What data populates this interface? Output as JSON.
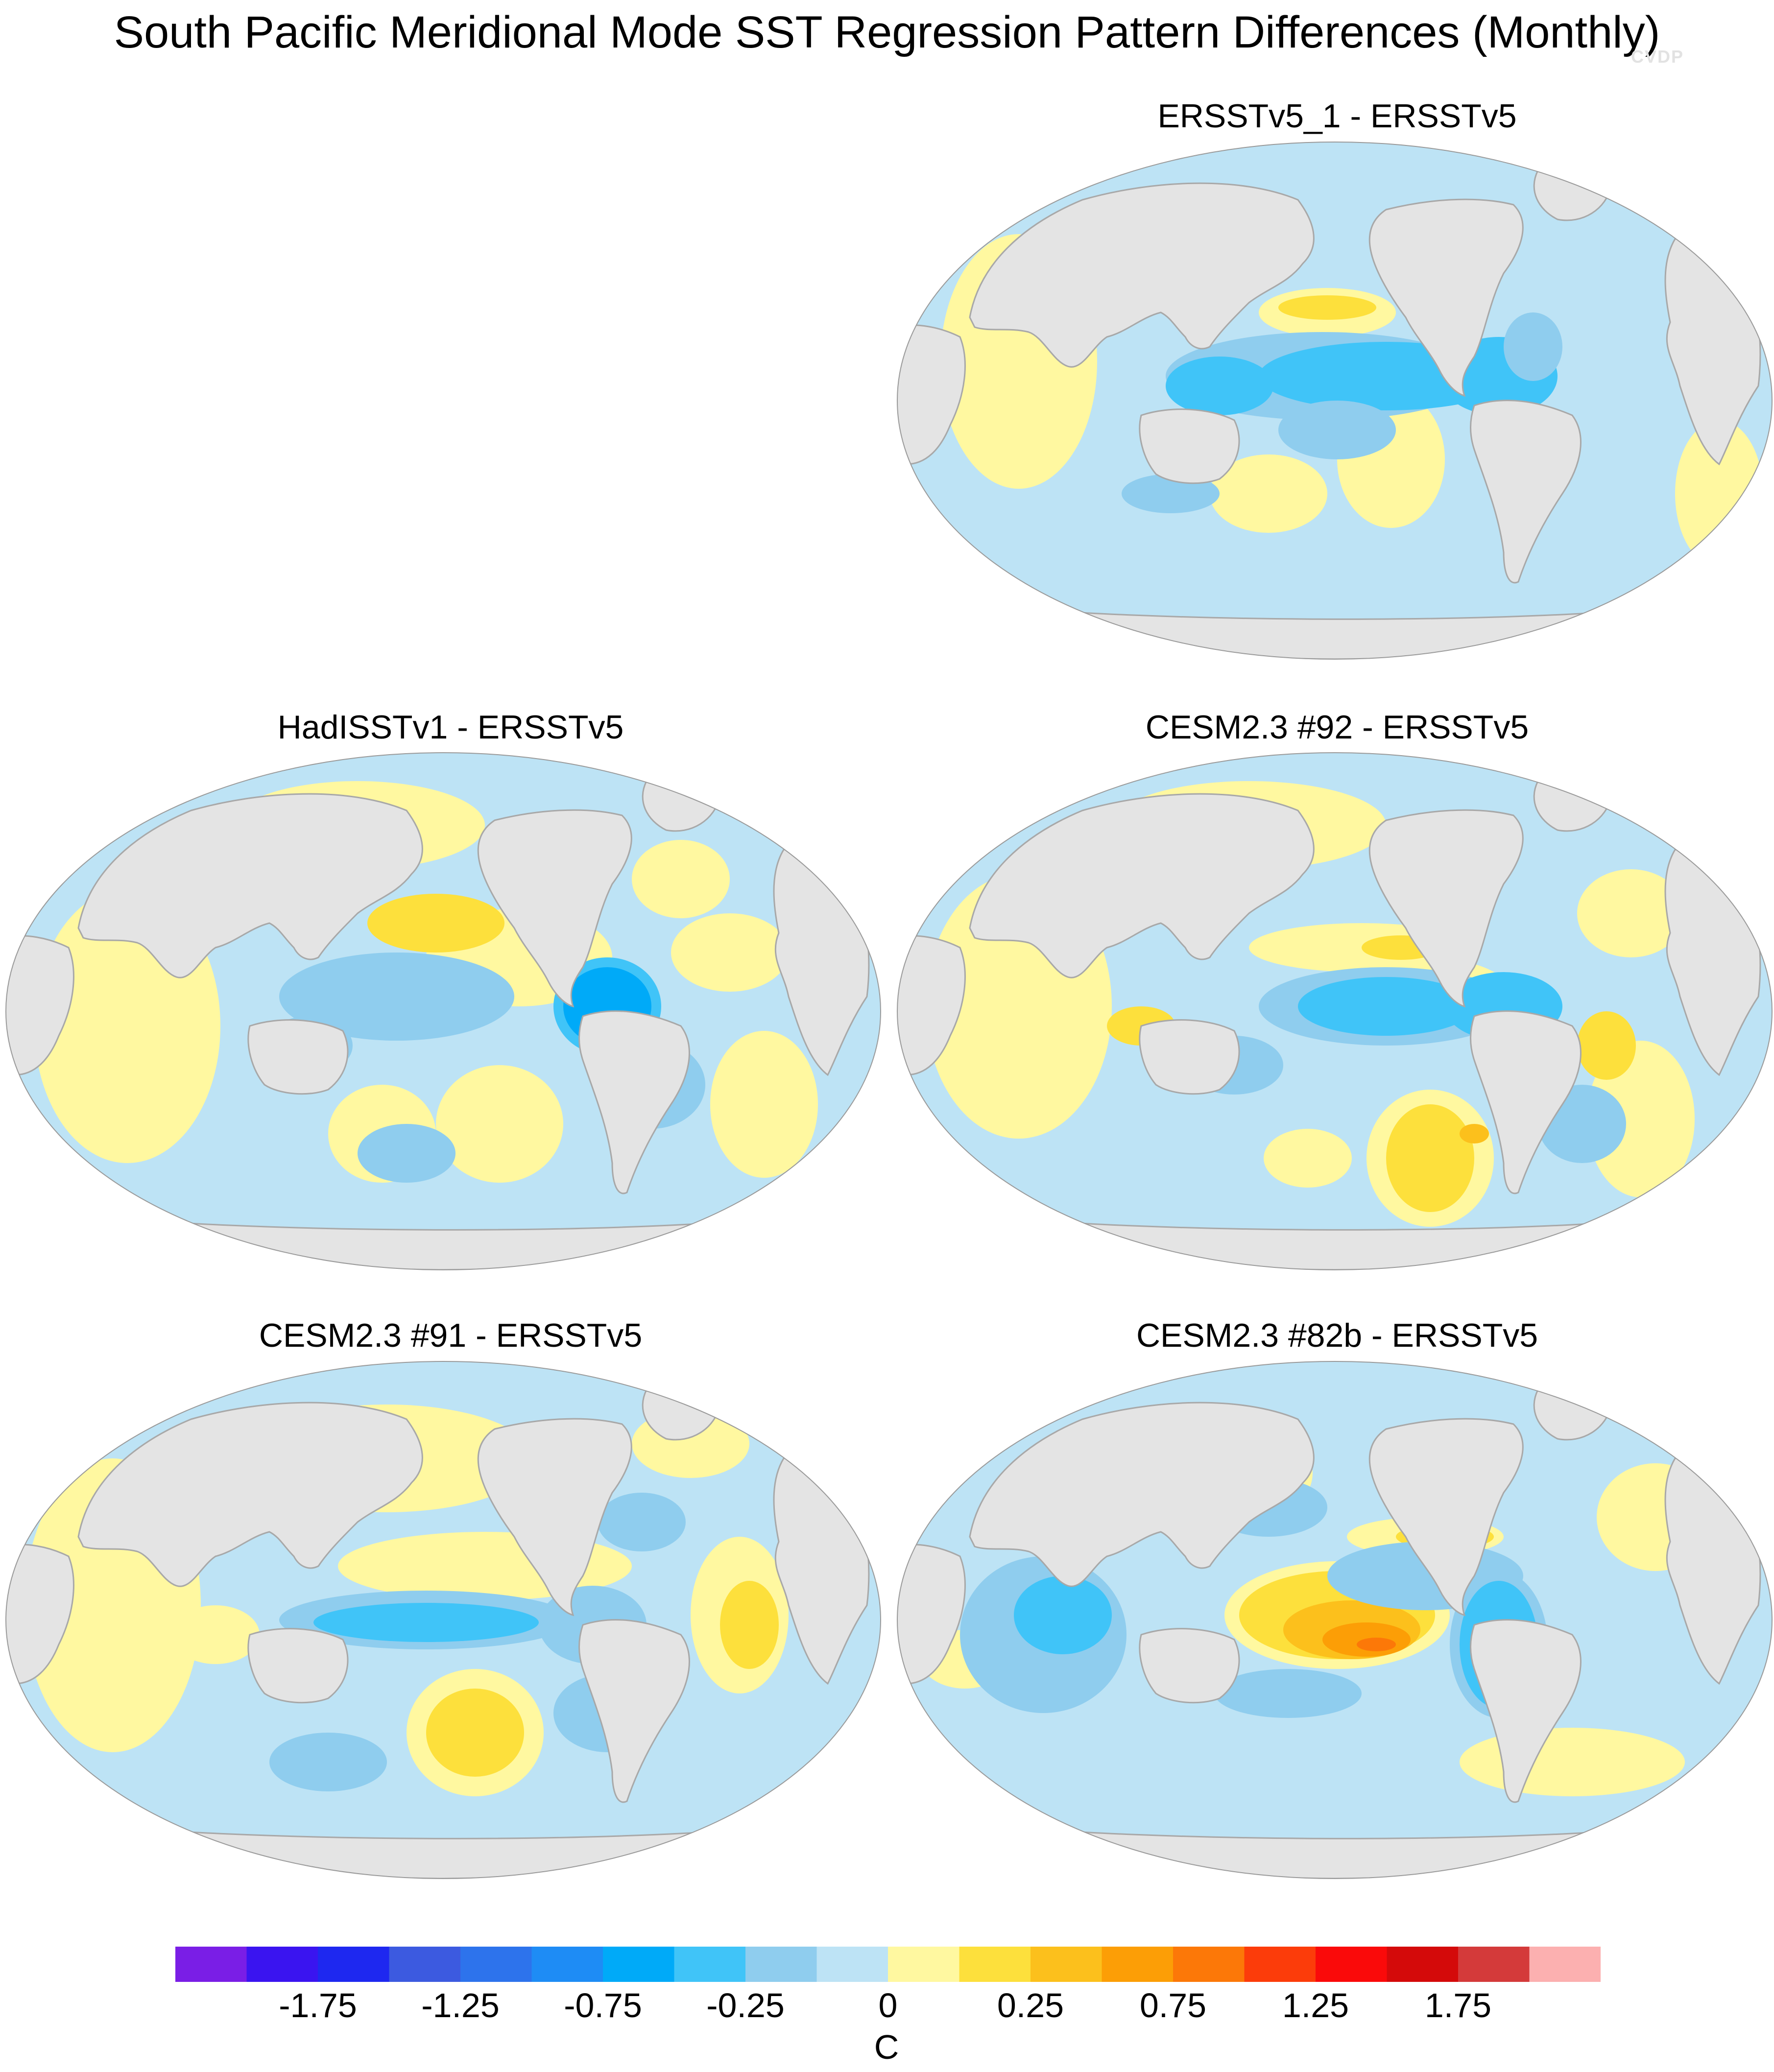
{
  "figure": {
    "title": "South Pacific Meridional Mode SST Regression Pattern Differences (Monthly)",
    "credit": "CVDP"
  },
  "panels": [
    {
      "id": "ersstv5_1",
      "title": "ERSSTv5_1 - ERSSTv5"
    },
    {
      "id": "hadisstv1",
      "title": "HadISSTv1 - ERSSTv5"
    },
    {
      "id": "cesm_92",
      "title": "CESM2.3 #92 - ERSSTv5"
    },
    {
      "id": "cesm_91",
      "title": "CESM2.3 #91 - ERSSTv5"
    },
    {
      "id": "cesm_82b",
      "title": "CESM2.3 #82b - ERSSTv5"
    }
  ],
  "colorbar": {
    "units": "C",
    "tick_labels": [
      "-1.75",
      "-1.25",
      "-0.75",
      "-0.25",
      "0",
      "0.25",
      "0.75",
      "1.25",
      "1.75"
    ],
    "colors": [
      "#7a1ee6",
      "#3a14f0",
      "#1e28f0",
      "#3c5ae0",
      "#2d73ec",
      "#1e8cf5",
      "#00aaf8",
      "#40c4f8",
      "#8fcdee",
      "#bde3f5",
      "#fff8a0",
      "#fde03c",
      "#fcc01c",
      "#fc9e06",
      "#fc7808",
      "#fc3c0a",
      "#fa0a0a",
      "#d40a0a",
      "#d43a3a",
      "#fcb0b0"
    ],
    "land_color": "#e4e4e4",
    "coast_color": "#a8a8a8"
  }
}
